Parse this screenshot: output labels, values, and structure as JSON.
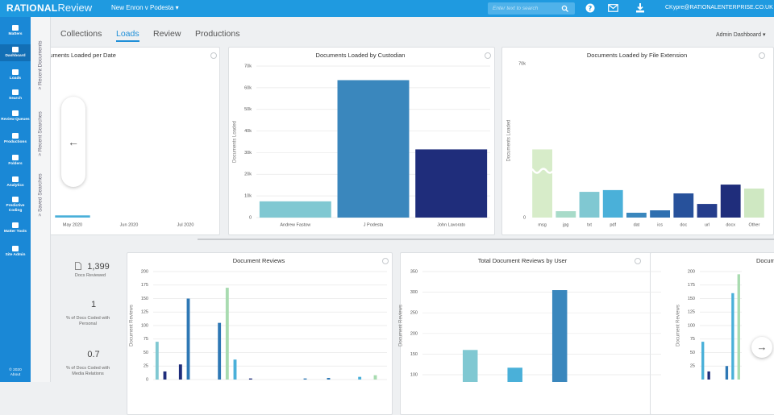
{
  "header": {
    "logo_bold": "RATIONAL",
    "logo_light": "Review",
    "matter": "New Enron v Podesta",
    "search_placeholder": "Enter text to search",
    "user": "CKypre@RATIONALENTERPRISE.CO.UK"
  },
  "nav": [
    "Matters",
    "Dashboard",
    "Loads",
    "Search",
    "Review Queues",
    "Productions",
    "Folders",
    "Analytics",
    "Predictive Coding",
    "Matter Tools",
    "Site Admin"
  ],
  "footer": [
    "© 2020",
    "About"
  ],
  "side_panels": [
    "Recent Documents",
    "Recent Searches",
    "Saved Searches"
  ],
  "tabs": [
    "Collections",
    "Loads",
    "Review",
    "Productions"
  ],
  "dashboard_menu": "Admin Dashboard",
  "stats": [
    {
      "value": "1,399",
      "label": "Docs Reviewed"
    },
    {
      "value": "1",
      "label": "% of Docs Coded with Personal"
    },
    {
      "value": "0.7",
      "label": "% of Docs Coded with Media Relations"
    }
  ],
  "chart_data": [
    {
      "type": "bar",
      "title": "Documents Loaded per Date",
      "categories": [
        "May 2020",
        "Jun 2020",
        "Jul 2020"
      ],
      "values": [
        1000,
        0,
        0
      ],
      "color": "#4ab0d9",
      "ylim": [
        0,
        70000
      ]
    },
    {
      "type": "bar",
      "title": "Documents Loaded by Custodian",
      "y_label": "Documents Loaded",
      "categories": [
        "Andrew Fastow",
        "J Podesta",
        "John Lavorato"
      ],
      "values": [
        7500,
        63500,
        31500
      ],
      "colors": [
        "#80c8d2",
        "#3a87bd",
        "#1f2d7b"
      ],
      "ylim": [
        0,
        70000
      ],
      "yticks": [
        0,
        {
          "value": 10000,
          "label": "10k"
        },
        {
          "value": 20000,
          "label": "20k"
        },
        {
          "value": 30000,
          "label": "30k"
        },
        {
          "value": 40000,
          "label": "40k"
        },
        {
          "value": 50000,
          "label": "50k"
        },
        {
          "value": 60000,
          "label": "60k"
        },
        {
          "value": 70000,
          "label": "70k"
        }
      ],
      "grid": true
    },
    {
      "type": "bar",
      "title": "Documents Loaded by File Extension",
      "y_label": "Documents Loaded",
      "categories": [
        "msg",
        "jpg",
        "txt",
        "pdf",
        "dat",
        "ics",
        "doc",
        "url",
        "docx",
        "Other"
      ],
      "values": [
        31000,
        2900,
        11700,
        12500,
        2200,
        3300,
        11000,
        6200,
        15000,
        13200
      ],
      "colors": [
        "#d7ecc9",
        "#a8dbc9",
        "#80c8d2",
        "#4ab0d9",
        "#3a87bd",
        "#2e6fb0",
        "#27519b",
        "#253d8c",
        "#1f2d7b",
        "#cfe8c2"
      ],
      "ylim": [
        0,
        70000
      ],
      "yticks": [
        0,
        {
          "value": 70000,
          "label": "70k"
        }
      ],
      "grid": false
    },
    {
      "type": "bar",
      "title": "Document Reviews",
      "y_label": "Document Reviews",
      "categories": [
        null,
        null,
        null,
        null,
        null,
        null,
        null,
        null,
        null,
        null,
        null,
        null,
        null,
        null,
        null,
        null,
        null,
        null,
        null,
        null,
        null,
        null,
        null,
        null,
        null,
        null,
        null,
        null,
        null,
        null
      ],
      "values": [
        70,
        15,
        0,
        28,
        150,
        0,
        0,
        0,
        105,
        170,
        37,
        0,
        2,
        0,
        0,
        0,
        0,
        0,
        0,
        2,
        0,
        0,
        3,
        0,
        0,
        0,
        5,
        0,
        8,
        0
      ],
      "colors": [
        "#80c8d2",
        "#1f2d7b",
        "#2e78b5",
        "#1f2d7b",
        "#2e78b5",
        "#2e78b5",
        "#2e78b5",
        "#2e78b5",
        "#2e78b5",
        "#a8dbb0",
        "#4ab0d9",
        "#2e78b5",
        "#1f2d7b",
        "#2e78b5",
        "#2e78b5",
        "#2e78b5",
        "#2e78b5",
        "#2e78b5",
        "#2e78b5",
        "#2e78b5",
        "#2e78b5",
        "#2e78b5",
        "#2e78b5",
        "#2e78b5",
        "#2e78b5",
        "#2e78b5",
        "#4ab0d9",
        "#2e78b5",
        "#a8dbb0",
        "#2e78b5"
      ],
      "ylim": [
        0,
        200
      ],
      "yticks": [
        0,
        25,
        50,
        75,
        100,
        125,
        150,
        175,
        200
      ],
      "grid": true
    },
    {
      "type": "bar",
      "title": "Total Document Reviews by User",
      "y_label": "Document Reviews",
      "categories": [
        null,
        null,
        null
      ],
      "values": [
        160,
        117,
        305
      ],
      "colors": [
        "#80c8d2",
        "#4ab0d9",
        "#3a87bd"
      ],
      "ylim": [
        0,
        350
      ],
      "yticks": [
        100,
        150,
        200,
        250,
        300,
        350
      ],
      "grid": true
    },
    {
      "type": "bar",
      "title": "Document Reviews",
      "y_label": "Document Reviews",
      "categories": [
        null,
        null,
        null,
        null,
        null,
        null,
        null
      ],
      "values": [
        70,
        15,
        0,
        0,
        25,
        160,
        195
      ],
      "colors": [
        "#4ab0d9",
        "#1f2d7b",
        "#2e78b5",
        "#2e78b5",
        "#2e78b5",
        "#4ab0d9",
        "#a8dbb0"
      ],
      "ylim": [
        0,
        200
      ],
      "yticks": [
        25,
        50,
        75,
        100,
        125,
        150,
        175,
        200
      ],
      "grid": true
    }
  ]
}
